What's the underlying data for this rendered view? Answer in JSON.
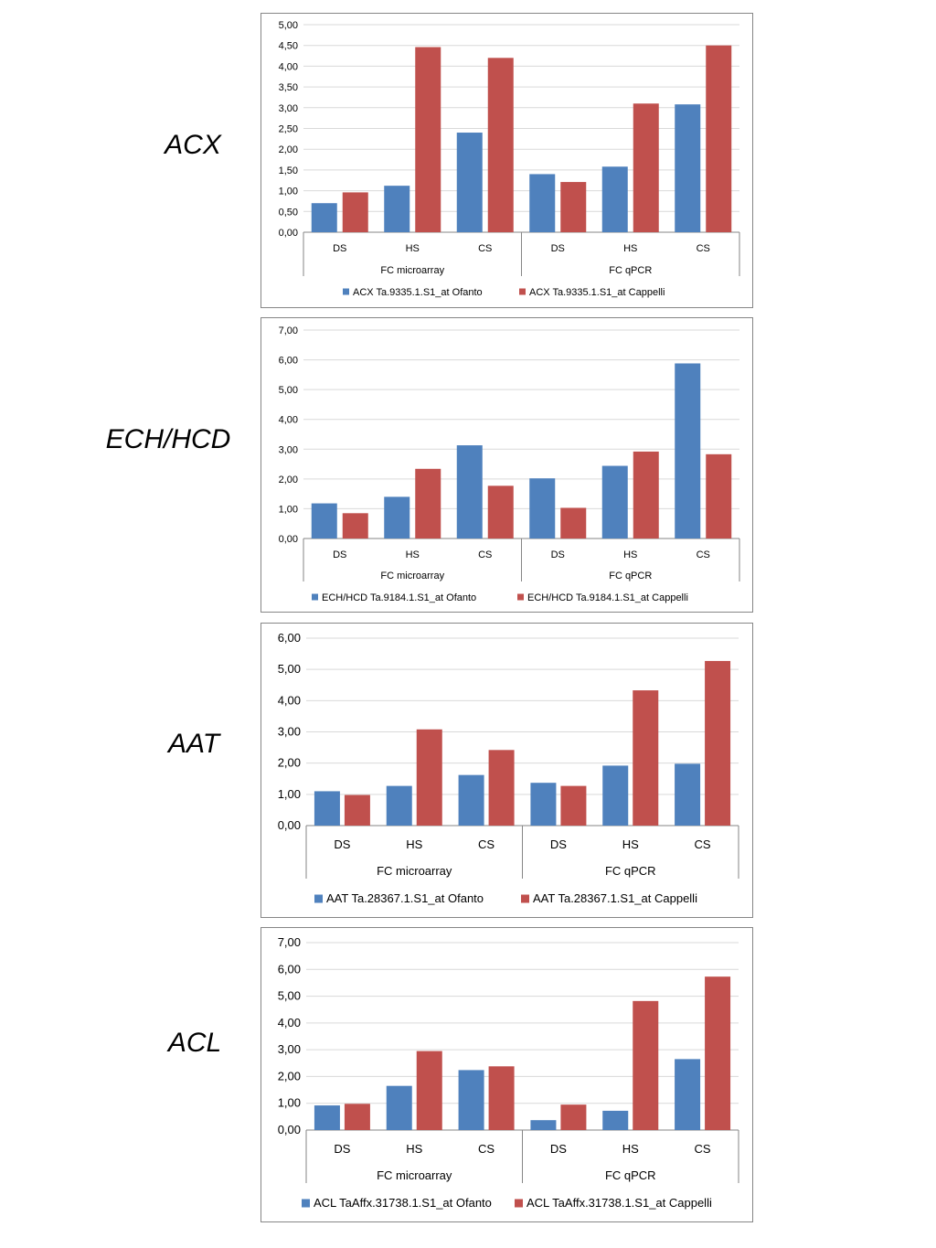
{
  "figure": {
    "gene_labels": [
      "ACX",
      "ECH/HCD",
      "AAT",
      "ACL"
    ]
  },
  "colors": {
    "ofanto": "#4f81bd",
    "cappelli": "#c0504d",
    "grid": "#d9d9d9",
    "axis": "#868686"
  },
  "chart_data": [
    {
      "type": "bar",
      "gene": "ACX",
      "groups": [
        "FC microarray",
        "FC qPCR"
      ],
      "categories": [
        "DS",
        "HS",
        "CS",
        "DS",
        "HS",
        "CS"
      ],
      "y_ticks": [
        "0,00",
        "0,50",
        "1,00",
        "1,50",
        "2,00",
        "2,50",
        "3,00",
        "3,50",
        "4,00",
        "4,50",
        "5,00"
      ],
      "ylim": [
        0,
        5
      ],
      "grid": true,
      "legend_position": "bottom",
      "series": [
        {
          "name": "ACX Ta.9335.1.S1_at  Ofanto",
          "color": "#4f81bd",
          "values": [
            0.7,
            1.12,
            2.4,
            1.4,
            1.58,
            3.08
          ]
        },
        {
          "name": "ACX Ta.9335.1.S1_at  Cappelli",
          "color": "#c0504d",
          "values": [
            0.96,
            4.46,
            4.2,
            1.21,
            3.1,
            4.5
          ]
        }
      ]
    },
    {
      "type": "bar",
      "gene": "ECH/HCD",
      "groups": [
        "FC microarray",
        "FC qPCR"
      ],
      "categories": [
        "DS",
        "HS",
        "CS",
        "DS",
        "HS",
        "CS"
      ],
      "y_ticks": [
        "0,00",
        "1,00",
        "2,00",
        "3,00",
        "4,00",
        "5,00",
        "6,00",
        "7,00"
      ],
      "ylim": [
        0,
        7
      ],
      "grid": true,
      "legend_position": "bottom",
      "series": [
        {
          "name": "ECH/HCD Ta.9184.1.S1_at  Ofanto",
          "color": "#4f81bd",
          "values": [
            1.18,
            1.4,
            3.13,
            2.02,
            2.44,
            5.88
          ]
        },
        {
          "name": "ECH/HCD Ta.9184.1.S1_at  Cappelli",
          "color": "#c0504d",
          "values": [
            0.85,
            2.34,
            1.77,
            1.03,
            2.92,
            2.83
          ]
        }
      ]
    },
    {
      "type": "bar",
      "gene": "AAT",
      "groups": [
        "FC microarray",
        "FC qPCR"
      ],
      "categories": [
        "DS",
        "HS",
        "CS",
        "DS",
        "HS",
        "CS"
      ],
      "y_ticks": [
        "0,00",
        "1,00",
        "2,00",
        "3,00",
        "4,00",
        "5,00",
        "6,00"
      ],
      "ylim": [
        0,
        6
      ],
      "grid": true,
      "legend_position": "bottom",
      "series": [
        {
          "name": "AAT Ta.28367.1.S1_at  Ofanto",
          "color": "#4f81bd",
          "values": [
            1.1,
            1.27,
            1.62,
            1.37,
            1.92,
            1.98
          ]
        },
        {
          "name": "AAT Ta.28367.1.S1_at  Cappelli",
          "color": "#c0504d",
          "values": [
            0.98,
            3.08,
            2.42,
            1.27,
            4.33,
            5.27
          ]
        }
      ]
    },
    {
      "type": "bar",
      "gene": "ACL",
      "groups": [
        "FC microarray",
        "FC qPCR"
      ],
      "categories": [
        "DS",
        "HS",
        "CS",
        "DS",
        "HS",
        "CS"
      ],
      "y_ticks": [
        "0,00",
        "1,00",
        "2,00",
        "3,00",
        "4,00",
        "5,00",
        "6,00",
        "7,00"
      ],
      "ylim": [
        0,
        7
      ],
      "grid": true,
      "legend_position": "bottom",
      "series": [
        {
          "name": "ACL TaAffx.31738.1.S1_at  Ofanto",
          "color": "#4f81bd",
          "values": [
            0.92,
            1.65,
            2.24,
            0.37,
            0.72,
            2.65
          ]
        },
        {
          "name": "ACL TaAffx.31738.1.S1_at  Cappelli",
          "color": "#c0504d",
          "values": [
            0.98,
            2.95,
            2.38,
            0.95,
            4.82,
            5.73
          ]
        }
      ]
    }
  ]
}
